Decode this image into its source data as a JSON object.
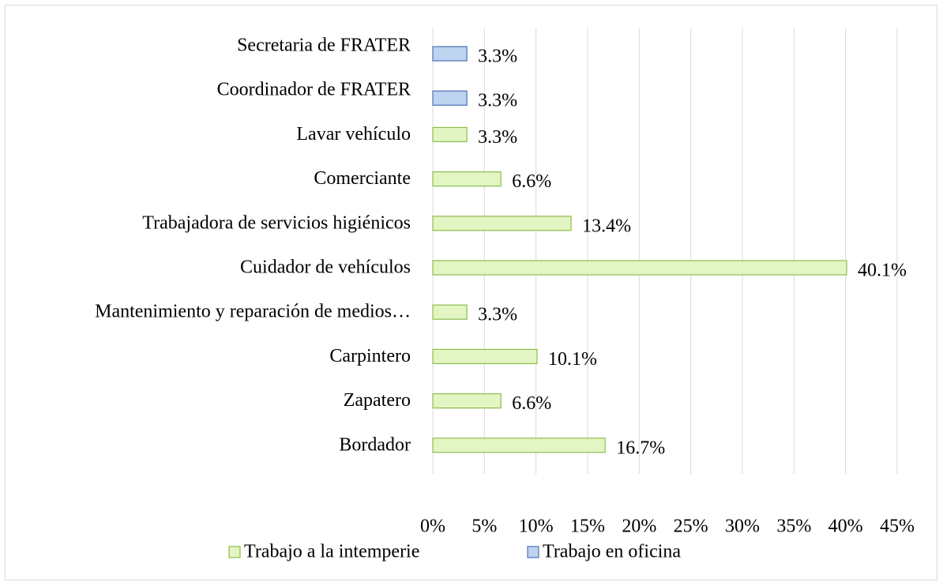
{
  "chart_data": {
    "type": "barh",
    "categories": [
      "Secretaria de FRATER",
      "Coordinador de FRATER",
      "Lavar vehículo",
      "Comerciante",
      "Trabajadora de servicios higiénicos",
      "Cuidador de vehículos",
      "Mantenimiento y reparación de medios…",
      "Carpintero",
      "Zapatero",
      "Bordador"
    ],
    "series": [
      {
        "name": "Trabajo a la intemperie",
        "color": "#e3f5c3",
        "stroke": "#8cbd4c",
        "values": [
          null,
          null,
          3.3,
          6.6,
          13.4,
          40.1,
          3.3,
          10.1,
          6.6,
          16.7
        ],
        "value_labels": [
          null,
          null,
          "3.3%",
          "6.6%",
          "13.4%",
          "40.1%",
          "3.3%",
          "10.1%",
          "6.6%",
          "16.7%"
        ]
      },
      {
        "name": "Trabajo en oficina",
        "color": "#bdd3f0",
        "stroke": "#4a72b5",
        "values": [
          3.3,
          3.3,
          null,
          null,
          null,
          null,
          null,
          null,
          null,
          null
        ],
        "value_labels": [
          "3.3%",
          "3.3%",
          null,
          null,
          null,
          null,
          null,
          null,
          null,
          null
        ]
      }
    ],
    "xlim": [
      0,
      45
    ],
    "xticks": [
      {
        "value": 0,
        "label": "0%"
      },
      {
        "value": 5,
        "label": "5%"
      },
      {
        "value": 10,
        "label": "10%"
      },
      {
        "value": 15,
        "label": "15%"
      },
      {
        "value": 20,
        "label": "20%"
      },
      {
        "value": 25,
        "label": "25%"
      },
      {
        "value": 30,
        "label": "30%"
      },
      {
        "value": 35,
        "label": "35%"
      },
      {
        "value": 40,
        "label": "40%"
      },
      {
        "value": 45,
        "label": "45%"
      }
    ],
    "grid": true,
    "legend": "bottom"
  }
}
